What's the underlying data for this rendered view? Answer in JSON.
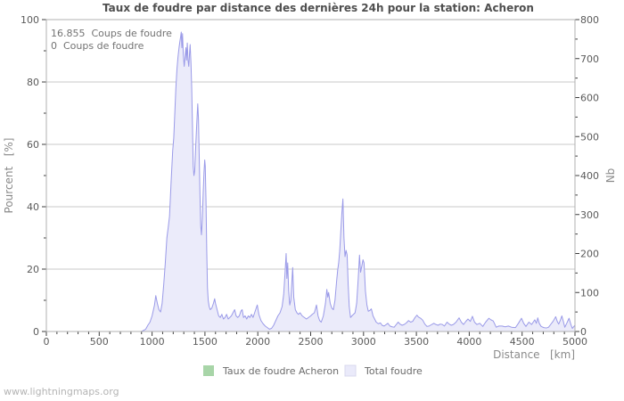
{
  "title": "Taux de foudre par distance des dernières 24h pour la station: Acheron",
  "annotation": {
    "line1": "16.855  Coups de foudre",
    "line2": "0  Coups de foudre"
  },
  "watermark": "www.lightningmaps.org",
  "legend": [
    {
      "label": "Taux de foudre Acheron",
      "color": "#a8d5a8"
    },
    {
      "label": "Total foudre",
      "color": "#eaeafa"
    }
  ],
  "axes": {
    "x": {
      "label": "Distance   [km]",
      "min": 0,
      "max": 5000,
      "major_tick": 500,
      "minor_tick": 100
    },
    "y_left": {
      "label": "Pourcent   [%]",
      "min": 0,
      "max": 100,
      "major_tick": 20,
      "minor_tick": 10
    },
    "y_right": {
      "label": "Nb",
      "min": 0,
      "max": 800,
      "major_tick": 100,
      "minor_tick": 50
    }
  },
  "colors": {
    "frame": "#b0b0b0",
    "grid": "#c9c9c9",
    "tick": "#3c3c3c",
    "area_fill": "#ebebfa",
    "area_line": "#9a9ae8",
    "rate_line": "#a8d5a8"
  },
  "chart_data": {
    "type": "area",
    "title": "Taux de foudre par distance des dernières 24h pour la station: Acheron",
    "xlabel": "Distance [km]",
    "ylabel_left": "Pourcent [%]",
    "ylabel_right": "Nb",
    "xlim": [
      0,
      5000
    ],
    "ylim_left": [
      0,
      100
    ],
    "ylim_right": [
      0,
      800
    ],
    "grid": "horizontal, every 20% of left axis",
    "legend_position": "bottom center",
    "total_strikes_shown": "16.855",
    "station_strikes_shown": "0",
    "series": [
      {
        "name": "Taux de foudre Acheron",
        "axis": "left",
        "type": "line",
        "constant_value": 0,
        "note": "flat at zero, not visible in plot"
      },
      {
        "name": "Total foudre",
        "axis": "right",
        "type": "area",
        "units": "Nb (count)",
        "points": [
          [
            0,
            0
          ],
          [
            100,
            0
          ],
          [
            200,
            0
          ],
          [
            300,
            0
          ],
          [
            400,
            0
          ],
          [
            500,
            0
          ],
          [
            600,
            0
          ],
          [
            700,
            0
          ],
          [
            800,
            0
          ],
          [
            900,
            0
          ],
          [
            940,
            6
          ],
          [
            960,
            16
          ],
          [
            980,
            24
          ],
          [
            1000,
            40
          ],
          [
            1023,
            68
          ],
          [
            1035,
            92
          ],
          [
            1050,
            72
          ],
          [
            1065,
            56
          ],
          [
            1080,
            50
          ],
          [
            1095,
            72
          ],
          [
            1110,
            120
          ],
          [
            1125,
            176
          ],
          [
            1140,
            240
          ],
          [
            1155,
            272
          ],
          [
            1165,
            296
          ],
          [
            1180,
            384
          ],
          [
            1195,
            464
          ],
          [
            1205,
            496
          ],
          [
            1215,
            560
          ],
          [
            1225,
            624
          ],
          [
            1235,
            672
          ],
          [
            1245,
            704
          ],
          [
            1255,
            728
          ],
          [
            1263,
            744
          ],
          [
            1270,
            756
          ],
          [
            1276,
            768
          ],
          [
            1282,
            728
          ],
          [
            1288,
            764
          ],
          [
            1295,
            712
          ],
          [
            1304,
            680
          ],
          [
            1312,
            704
          ],
          [
            1320,
            728
          ],
          [
            1326,
            696
          ],
          [
            1333,
            740
          ],
          [
            1340,
            696
          ],
          [
            1347,
            680
          ],
          [
            1354,
            712
          ],
          [
            1360,
            736
          ],
          [
            1368,
            688
          ],
          [
            1375,
            624
          ],
          [
            1382,
            528
          ],
          [
            1389,
            424
          ],
          [
            1396,
            400
          ],
          [
            1403,
            412
          ],
          [
            1411,
            464
          ],
          [
            1419,
            512
          ],
          [
            1426,
            552
          ],
          [
            1432,
            584
          ],
          [
            1439,
            544
          ],
          [
            1446,
            448
          ],
          [
            1453,
            352
          ],
          [
            1460,
            272
          ],
          [
            1467,
            248
          ],
          [
            1475,
            288
          ],
          [
            1483,
            352
          ],
          [
            1491,
            408
          ],
          [
            1498,
            440
          ],
          [
            1503,
            424
          ],
          [
            1510,
            336
          ],
          [
            1517,
            208
          ],
          [
            1524,
            112
          ],
          [
            1531,
            80
          ],
          [
            1540,
            64
          ],
          [
            1550,
            56
          ],
          [
            1565,
            60
          ],
          [
            1580,
            72
          ],
          [
            1592,
            84
          ],
          [
            1600,
            72
          ],
          [
            1615,
            56
          ],
          [
            1630,
            40
          ],
          [
            1645,
            36
          ],
          [
            1660,
            44
          ],
          [
            1675,
            32
          ],
          [
            1690,
            36
          ],
          [
            1705,
            44
          ],
          [
            1720,
            32
          ],
          [
            1735,
            36
          ],
          [
            1750,
            40
          ],
          [
            1765,
            48
          ],
          [
            1781,
            56
          ],
          [
            1795,
            40
          ],
          [
            1810,
            36
          ],
          [
            1825,
            40
          ],
          [
            1840,
            52
          ],
          [
            1852,
            56
          ],
          [
            1865,
            36
          ],
          [
            1880,
            40
          ],
          [
            1895,
            32
          ],
          [
            1910,
            40
          ],
          [
            1925,
            36
          ],
          [
            1940,
            44
          ],
          [
            1955,
            36
          ],
          [
            1970,
            48
          ],
          [
            1985,
            60
          ],
          [
            1995,
            68
          ],
          [
            2010,
            44
          ],
          [
            2030,
            28
          ],
          [
            2050,
            20
          ],
          [
            2070,
            14
          ],
          [
            2090,
            10
          ],
          [
            2110,
            6
          ],
          [
            2130,
            8
          ],
          [
            2150,
            16
          ],
          [
            2170,
            28
          ],
          [
            2190,
            40
          ],
          [
            2210,
            48
          ],
          [
            2230,
            64
          ],
          [
            2245,
            96
          ],
          [
            2258,
            152
          ],
          [
            2268,
            200
          ],
          [
            2275,
            136
          ],
          [
            2283,
            176
          ],
          [
            2292,
            104
          ],
          [
            2302,
            68
          ],
          [
            2312,
            80
          ],
          [
            2322,
            128
          ],
          [
            2330,
            164
          ],
          [
            2340,
            88
          ],
          [
            2355,
            56
          ],
          [
            2370,
            48
          ],
          [
            2385,
            44
          ],
          [
            2400,
            48
          ],
          [
            2420,
            40
          ],
          [
            2440,
            36
          ],
          [
            2460,
            32
          ],
          [
            2480,
            36
          ],
          [
            2500,
            40
          ],
          [
            2515,
            44
          ],
          [
            2535,
            48
          ],
          [
            2555,
            68
          ],
          [
            2570,
            40
          ],
          [
            2585,
            28
          ],
          [
            2600,
            24
          ],
          [
            2620,
            40
          ],
          [
            2640,
            72
          ],
          [
            2653,
            108
          ],
          [
            2662,
            88
          ],
          [
            2670,
            100
          ],
          [
            2685,
            72
          ],
          [
            2700,
            60
          ],
          [
            2715,
            56
          ],
          [
            2730,
            80
          ],
          [
            2745,
            128
          ],
          [
            2755,
            156
          ],
          [
            2765,
            176
          ],
          [
            2775,
            208
          ],
          [
            2785,
            256
          ],
          [
            2795,
            304
          ],
          [
            2805,
            340
          ],
          [
            2815,
            240
          ],
          [
            2825,
            192
          ],
          [
            2835,
            208
          ],
          [
            2845,
            196
          ],
          [
            2855,
            120
          ],
          [
            2865,
            64
          ],
          [
            2877,
            36
          ],
          [
            2890,
            40
          ],
          [
            2905,
            44
          ],
          [
            2920,
            48
          ],
          [
            2935,
            72
          ],
          [
            2950,
            136
          ],
          [
            2962,
            196
          ],
          [
            2972,
            152
          ],
          [
            2984,
            168
          ],
          [
            2995,
            184
          ],
          [
            3005,
            176
          ],
          [
            3018,
            104
          ],
          [
            3032,
            68
          ],
          [
            3045,
            52
          ],
          [
            3060,
            54
          ],
          [
            3074,
            58
          ],
          [
            3090,
            40
          ],
          [
            3105,
            32
          ],
          [
            3120,
            24
          ],
          [
            3140,
            20
          ],
          [
            3160,
            22
          ],
          [
            3175,
            16
          ],
          [
            3195,
            14
          ],
          [
            3215,
            18
          ],
          [
            3230,
            21
          ],
          [
            3250,
            14
          ],
          [
            3270,
            12
          ],
          [
            3290,
            11
          ],
          [
            3310,
            18
          ],
          [
            3328,
            24
          ],
          [
            3345,
            19
          ],
          [
            3365,
            16
          ],
          [
            3385,
            18
          ],
          [
            3405,
            22
          ],
          [
            3426,
            28
          ],
          [
            3445,
            24
          ],
          [
            3465,
            26
          ],
          [
            3485,
            35
          ],
          [
            3505,
            42
          ],
          [
            3520,
            37
          ],
          [
            3540,
            34
          ],
          [
            3560,
            29
          ],
          [
            3580,
            19
          ],
          [
            3600,
            13
          ],
          [
            3620,
            14
          ],
          [
            3645,
            18
          ],
          [
            3665,
            21
          ],
          [
            3685,
            18
          ],
          [
            3705,
            16
          ],
          [
            3725,
            19
          ],
          [
            3745,
            18
          ],
          [
            3765,
            14
          ],
          [
            3790,
            24
          ],
          [
            3810,
            19
          ],
          [
            3830,
            16
          ],
          [
            3850,
            18
          ],
          [
            3875,
            24
          ],
          [
            3904,
            35
          ],
          [
            3925,
            24
          ],
          [
            3946,
            18
          ],
          [
            3968,
            26
          ],
          [
            3988,
            32
          ],
          [
            4010,
            26
          ],
          [
            4030,
            39
          ],
          [
            4050,
            24
          ],
          [
            4072,
            18
          ],
          [
            4100,
            21
          ],
          [
            4128,
            13
          ],
          [
            4155,
            24
          ],
          [
            4185,
            34
          ],
          [
            4205,
            30
          ],
          [
            4227,
            27
          ],
          [
            4255,
            11
          ],
          [
            4280,
            14
          ],
          [
            4310,
            14
          ],
          [
            4340,
            12
          ],
          [
            4370,
            14
          ],
          [
            4400,
            11
          ],
          [
            4437,
            10
          ],
          [
            4465,
            21
          ],
          [
            4494,
            34
          ],
          [
            4515,
            21
          ],
          [
            4536,
            13
          ],
          [
            4564,
            24
          ],
          [
            4590,
            18
          ],
          [
            4620,
            30
          ],
          [
            4635,
            21
          ],
          [
            4648,
            35
          ],
          [
            4662,
            21
          ],
          [
            4680,
            13
          ],
          [
            4705,
            10
          ],
          [
            4730,
            9
          ],
          [
            4750,
            11
          ],
          [
            4770,
            18
          ],
          [
            4795,
            27
          ],
          [
            4818,
            38
          ],
          [
            4832,
            26
          ],
          [
            4846,
            19
          ],
          [
            4862,
            29
          ],
          [
            4876,
            40
          ],
          [
            4890,
            26
          ],
          [
            4904,
            11
          ],
          [
            4922,
            21
          ],
          [
            4944,
            34
          ],
          [
            4960,
            19
          ],
          [
            4975,
            8
          ],
          [
            4990,
            13
          ],
          [
            5000,
            16
          ]
        ]
      }
    ]
  }
}
